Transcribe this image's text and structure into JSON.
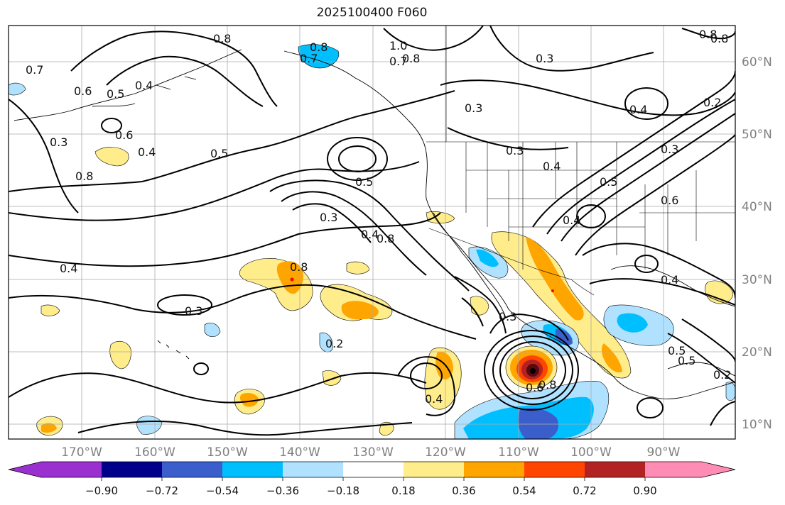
{
  "title": "2025100400 F060",
  "lat_labels": [
    "60°N",
    "50°N",
    "40°N",
    "30°N",
    "20°N",
    "10°N"
  ],
  "lon_labels": [
    "170°W",
    "160°W",
    "150°W",
    "140°W",
    "130°W",
    "120°W",
    "110°W",
    "100°W",
    "90°W"
  ],
  "colorbar": {
    "colors": [
      "#9b30d0",
      "#00008b",
      "#3a5fcd",
      "#00bfff",
      "#b0e2ff",
      "#ffffff",
      "#ffec8b",
      "#ffa500",
      "#ff4500",
      "#b22222",
      "#ff8cb4"
    ],
    "ticks": [
      "−0.90",
      "−0.72",
      "−0.54",
      "−0.36",
      "−0.18",
      "0.18",
      "0.36",
      "0.54",
      "0.72",
      "0.90"
    ]
  },
  "contour_labels": [
    "0.8",
    "0.7",
    "0.6",
    "0.5",
    "0.4",
    "0.3",
    "0.6",
    "0.4",
    "0.7",
    "0.8",
    "1.0",
    "0.7",
    "0.8",
    "0.3",
    "0.3",
    "0.4",
    "0.2",
    "0.5",
    "0.8",
    "0.5",
    "0.3",
    "0.4",
    "0.5",
    "0.3",
    "0.6",
    "0.4",
    "0.3",
    "0.4",
    "0.8",
    "0.8",
    "0.4",
    "0.3",
    "0.2",
    "0.4",
    "0.5",
    "0.5",
    "0.4",
    "0.6",
    "0.8",
    "0.2",
    "0.8",
    "0.8",
    "0.3"
  ]
}
